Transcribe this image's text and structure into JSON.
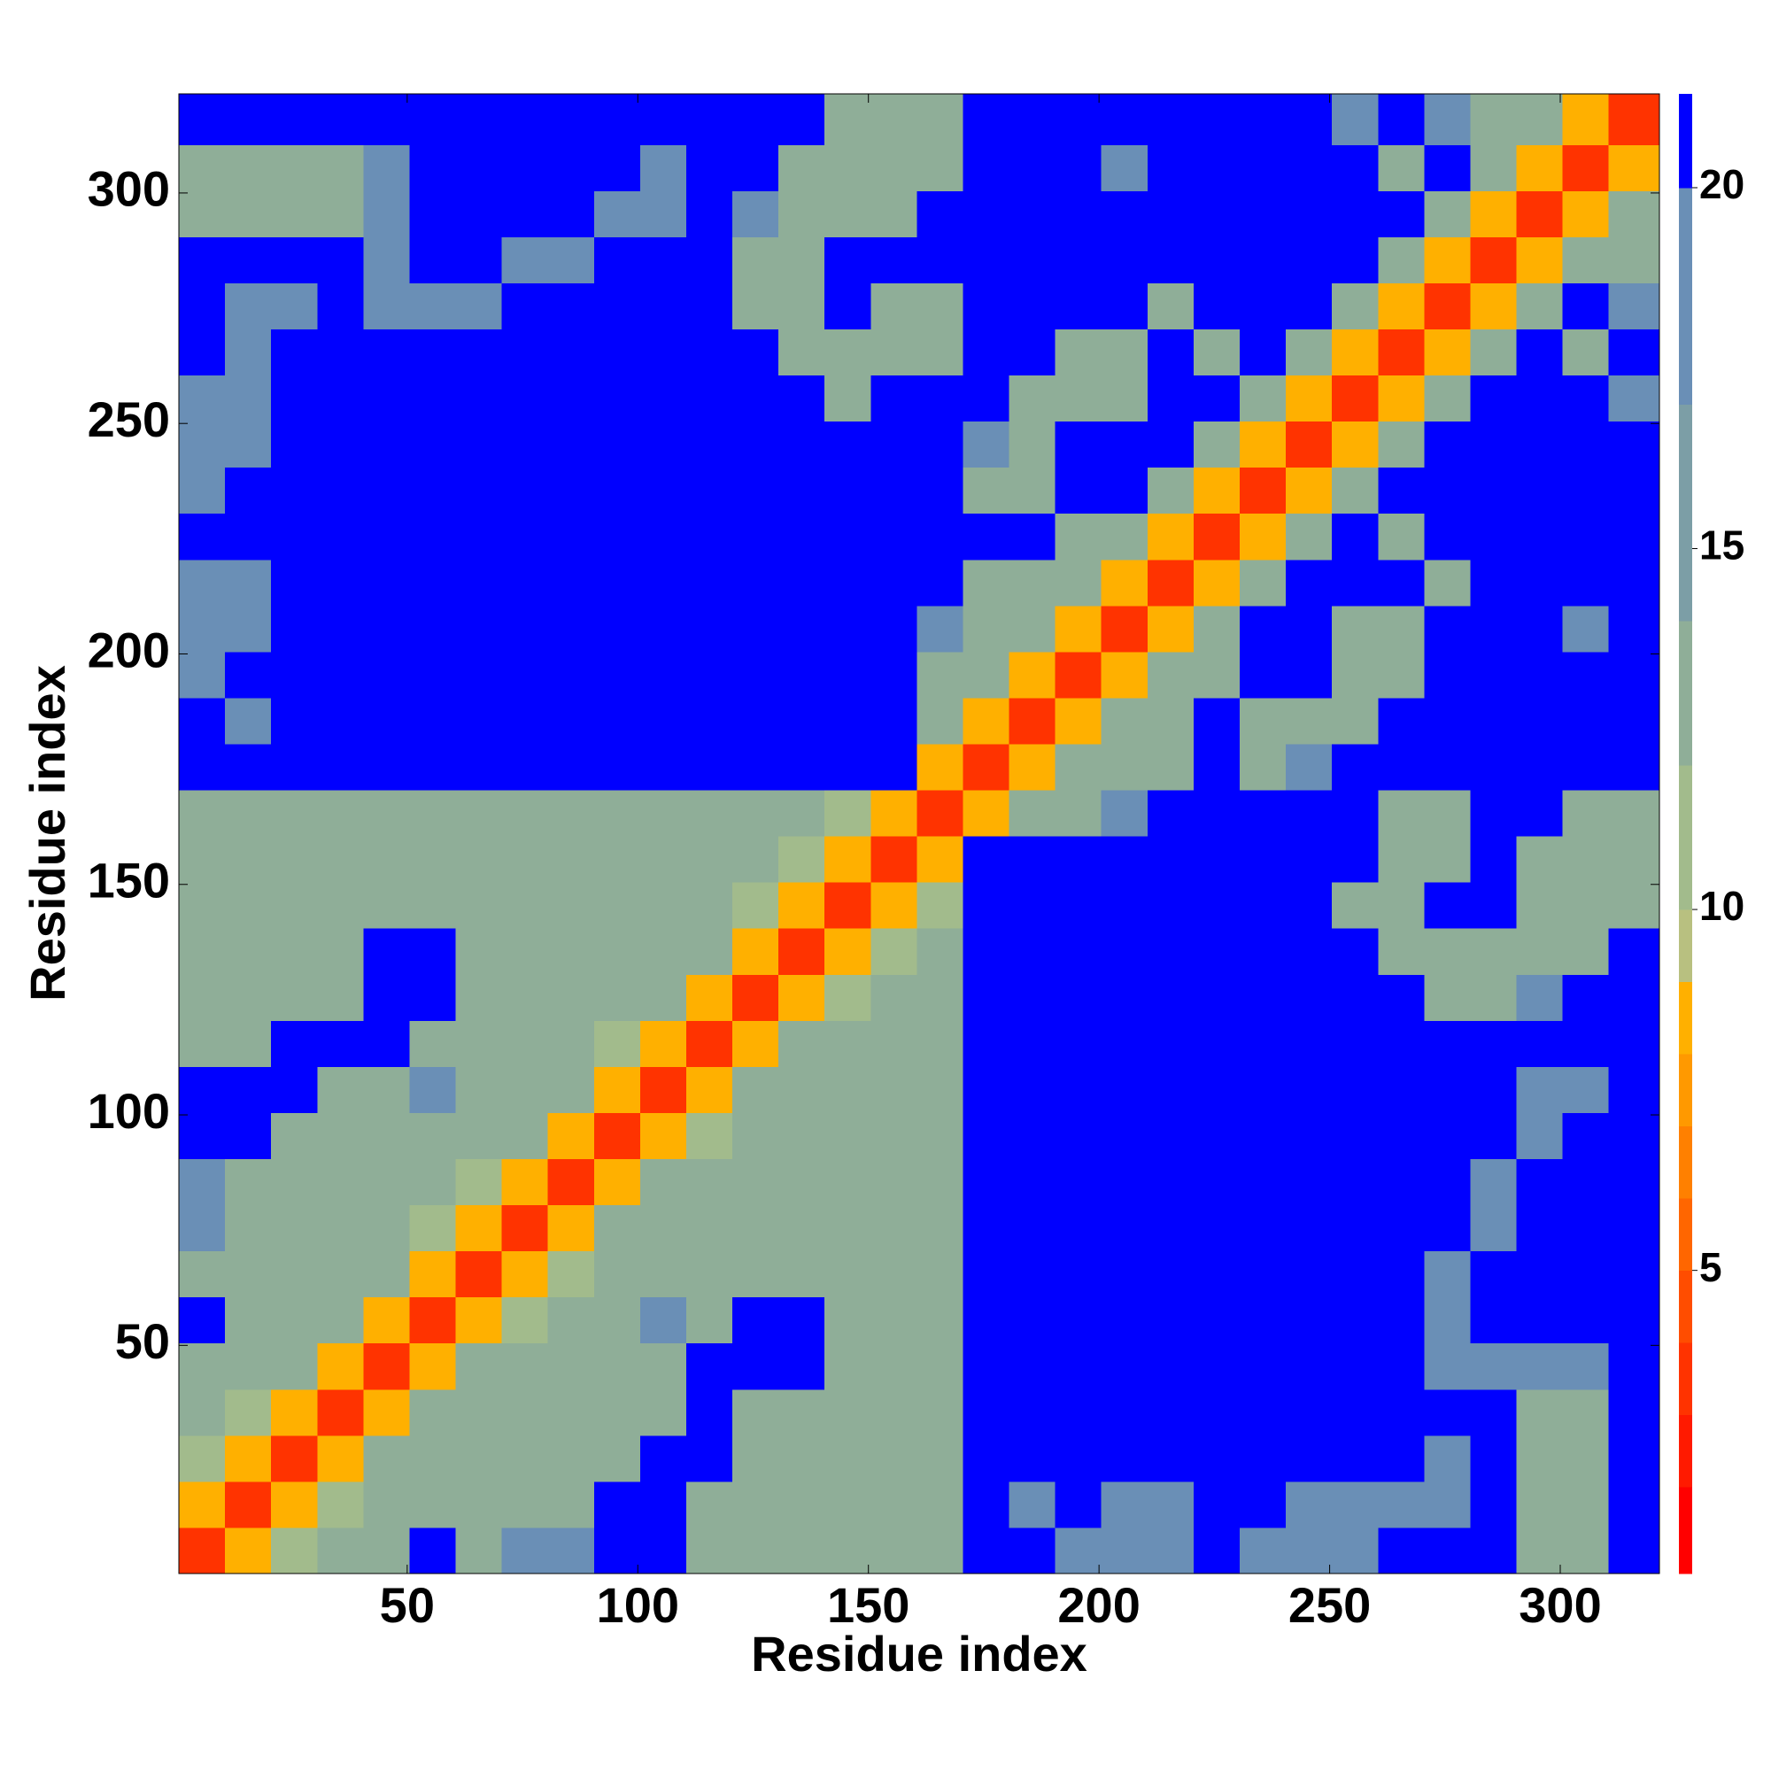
{
  "chart_data": {
    "type": "heatmap",
    "xlabel": "Residue index",
    "ylabel": "Residue index",
    "xlim": [
      0.5,
      321.5
    ],
    "ylim": [
      0.5,
      321.5
    ],
    "xticks": [
      50,
      100,
      150,
      200,
      250,
      300
    ],
    "yticks": [
      50,
      100,
      150,
      200,
      250,
      300
    ],
    "x_bins": [
      0.5,
      10.5,
      20.5,
      30.5,
      40.5,
      50.5,
      60.5,
      70.5,
      80.5,
      90.5,
      100.5,
      110.5,
      120.5,
      130.5,
      140.5,
      150.5,
      160.5,
      170.5,
      180.5,
      190.5,
      200.5,
      210.5,
      220.5,
      230.5,
      240.5,
      250.5,
      260.5,
      270.5,
      280.5,
      290.5,
      300.5,
      310.5,
      321.5
    ],
    "y_bins": [
      0.5,
      10.5,
      20.5,
      30.5,
      40.5,
      50.5,
      60.5,
      70.5,
      80.5,
      90.5,
      100.5,
      110.5,
      120.5,
      130.5,
      140.5,
      150.5,
      160.5,
      170.5,
      180.5,
      190.5,
      200.5,
      210.5,
      220.5,
      230.5,
      240.5,
      250.5,
      260.5,
      270.5,
      280.5,
      290.5,
      300.5,
      310.5,
      321.5
    ],
    "z": [
      [
        3,
        8,
        10,
        13,
        13,
        21,
        13,
        17,
        17,
        21,
        21,
        13,
        13,
        13,
        13,
        13,
        13,
        21,
        21,
        17,
        17,
        17,
        21,
        17,
        17,
        17,
        21,
        21,
        21,
        13,
        13,
        21
      ],
      [
        8,
        3,
        8,
        10,
        13,
        13,
        13,
        13,
        13,
        21,
        21,
        13,
        13,
        13,
        13,
        13,
        13,
        21,
        17,
        21,
        17,
        17,
        21,
        21,
        17,
        17,
        17,
        17,
        21,
        13,
        13,
        21
      ],
      [
        10,
        8,
        3,
        8,
        13,
        13,
        13,
        13,
        13,
        13,
        21,
        21,
        13,
        13,
        13,
        13,
        13,
        21,
        21,
        21,
        21,
        21,
        21,
        21,
        21,
        21,
        21,
        17,
        21,
        13,
        13,
        21
      ],
      [
        13,
        10,
        8,
        3,
        8,
        13,
        13,
        13,
        13,
        13,
        13,
        21,
        13,
        13,
        13,
        13,
        13,
        21,
        21,
        21,
        21,
        21,
        21,
        21,
        21,
        21,
        21,
        21,
        21,
        13,
        13,
        21
      ],
      [
        13,
        13,
        13,
        8,
        3,
        8,
        13,
        13,
        13,
        13,
        13,
        21,
        21,
        21,
        13,
        13,
        13,
        21,
        21,
        21,
        21,
        21,
        21,
        21,
        21,
        21,
        21,
        17,
        17,
        17,
        17,
        21
      ],
      [
        21,
        13,
        13,
        13,
        8,
        3,
        8,
        10,
        13,
        13,
        17,
        13,
        21,
        21,
        13,
        13,
        13,
        21,
        21,
        21,
        21,
        21,
        21,
        21,
        21,
        21,
        21,
        17,
        21,
        21,
        21,
        21
      ],
      [
        13,
        13,
        13,
        13,
        13,
        8,
        3,
        8,
        10,
        13,
        13,
        13,
        13,
        13,
        13,
        13,
        13,
        21,
        21,
        21,
        21,
        21,
        21,
        21,
        21,
        21,
        21,
        17,
        21,
        21,
        21,
        21
      ],
      [
        17,
        13,
        13,
        13,
        13,
        10,
        8,
        3,
        8,
        13,
        13,
        13,
        13,
        13,
        13,
        13,
        13,
        21,
        21,
        21,
        21,
        21,
        21,
        21,
        21,
        21,
        21,
        21,
        17,
        21,
        21,
        21
      ],
      [
        17,
        13,
        13,
        13,
        13,
        13,
        10,
        8,
        3,
        8,
        13,
        13,
        13,
        13,
        13,
        13,
        13,
        21,
        21,
        21,
        21,
        21,
        21,
        21,
        21,
        21,
        21,
        21,
        17,
        21,
        21,
        21
      ],
      [
        21,
        21,
        13,
        13,
        13,
        13,
        13,
        13,
        8,
        3,
        8,
        10,
        13,
        13,
        13,
        13,
        13,
        21,
        21,
        21,
        21,
        21,
        21,
        21,
        21,
        21,
        21,
        21,
        21,
        17,
        21,
        21
      ],
      [
        21,
        21,
        21,
        13,
        13,
        17,
        13,
        13,
        13,
        8,
        3,
        8,
        13,
        13,
        13,
        13,
        13,
        21,
        21,
        21,
        21,
        21,
        21,
        21,
        21,
        21,
        21,
        21,
        21,
        17,
        17,
        21
      ],
      [
        13,
        13,
        21,
        21,
        21,
        13,
        13,
        13,
        13,
        10,
        8,
        3,
        8,
        13,
        13,
        13,
        13,
        21,
        21,
        21,
        21,
        21,
        21,
        21,
        21,
        21,
        21,
        21,
        21,
        21,
        21,
        21
      ],
      [
        13,
        13,
        13,
        13,
        21,
        21,
        13,
        13,
        13,
        13,
        13,
        8,
        3,
        8,
        10,
        13,
        13,
        21,
        21,
        21,
        21,
        21,
        21,
        21,
        21,
        21,
        21,
        13,
        13,
        17,
        21,
        21
      ],
      [
        13,
        13,
        13,
        13,
        21,
        21,
        13,
        13,
        13,
        13,
        13,
        13,
        8,
        3,
        8,
        10,
        13,
        21,
        21,
        21,
        21,
        21,
        21,
        21,
        21,
        21,
        13,
        13,
        13,
        13,
        13,
        21
      ],
      [
        13,
        13,
        13,
        13,
        13,
        13,
        13,
        13,
        13,
        13,
        13,
        13,
        10,
        8,
        3,
        8,
        10,
        21,
        21,
        21,
        21,
        21,
        21,
        21,
        21,
        13,
        13,
        21,
        21,
        13,
        13,
        13
      ],
      [
        13,
        13,
        13,
        13,
        13,
        13,
        13,
        13,
        13,
        13,
        13,
        13,
        13,
        10,
        8,
        3,
        8,
        21,
        21,
        21,
        21,
        21,
        21,
        21,
        21,
        21,
        13,
        13,
        21,
        13,
        13,
        13
      ],
      [
        13,
        13,
        13,
        13,
        13,
        13,
        13,
        13,
        13,
        13,
        13,
        13,
        13,
        13,
        10,
        8,
        3,
        8,
        13,
        13,
        17,
        21,
        21,
        21,
        21,
        21,
        13,
        13,
        21,
        21,
        13,
        13
      ],
      [
        21,
        21,
        21,
        21,
        21,
        21,
        21,
        21,
        21,
        21,
        21,
        21,
        21,
        21,
        21,
        21,
        8,
        3,
        8,
        12,
        13,
        13,
        21,
        13,
        17,
        21,
        21,
        21,
        21,
        21,
        21,
        21
      ],
      [
        21,
        17,
        21,
        21,
        21,
        21,
        21,
        21,
        21,
        21,
        21,
        21,
        21,
        21,
        21,
        21,
        13,
        8,
        3,
        8,
        12,
        13,
        21,
        13,
        13,
        13,
        21,
        21,
        21,
        21,
        21,
        21
      ],
      [
        17,
        21,
        21,
        21,
        21,
        21,
        21,
        21,
        21,
        21,
        21,
        21,
        21,
        21,
        21,
        21,
        13,
        12,
        8,
        3,
        8,
        12,
        13,
        21,
        21,
        13,
        13,
        21,
        21,
        21,
        21,
        21
      ],
      [
        17,
        17,
        21,
        21,
        21,
        21,
        21,
        21,
        21,
        21,
        21,
        21,
        21,
        21,
        21,
        21,
        17,
        13,
        12,
        8,
        3,
        8,
        12,
        21,
        21,
        13,
        13,
        21,
        21,
        21,
        17,
        21
      ],
      [
        17,
        17,
        21,
        21,
        21,
        21,
        21,
        21,
        21,
        21,
        21,
        21,
        21,
        21,
        21,
        21,
        21,
        13,
        13,
        12,
        8,
        3,
        8,
        12,
        21,
        21,
        21,
        13,
        21,
        21,
        21,
        21
      ],
      [
        21,
        21,
        21,
        21,
        21,
        21,
        21,
        21,
        21,
        21,
        21,
        21,
        21,
        21,
        21,
        21,
        21,
        21,
        21,
        13,
        12,
        8,
        3,
        8,
        12,
        21,
        13,
        21,
        21,
        21,
        21,
        21
      ],
      [
        17,
        21,
        21,
        21,
        21,
        21,
        21,
        21,
        21,
        21,
        21,
        21,
        21,
        21,
        21,
        21,
        21,
        13,
        13,
        21,
        21,
        12,
        8,
        3,
        8,
        12,
        21,
        21,
        21,
        21,
        21,
        21
      ],
      [
        17,
        17,
        21,
        21,
        21,
        21,
        21,
        21,
        21,
        21,
        21,
        21,
        21,
        21,
        21,
        21,
        21,
        17,
        13,
        21,
        21,
        21,
        12,
        8,
        3,
        8,
        12,
        21,
        21,
        21,
        21,
        21
      ],
      [
        17,
        17,
        21,
        21,
        21,
        21,
        21,
        21,
        21,
        21,
        21,
        21,
        21,
        21,
        13,
        21,
        21,
        21,
        13,
        13,
        13,
        21,
        21,
        12,
        8,
        3,
        8,
        12,
        21,
        21,
        21,
        17
      ],
      [
        21,
        17,
        21,
        21,
        21,
        21,
        21,
        21,
        21,
        21,
        21,
        21,
        21,
        13,
        13,
        13,
        13,
        21,
        21,
        13,
        13,
        21,
        13,
        21,
        12,
        8,
        3,
        8,
        12,
        21,
        13,
        21
      ],
      [
        21,
        17,
        17,
        21,
        17,
        17,
        17,
        21,
        21,
        21,
        21,
        21,
        13,
        13,
        21,
        13,
        13,
        21,
        21,
        21,
        21,
        13,
        21,
        21,
        21,
        12,
        8,
        3,
        8,
        12,
        21,
        17
      ],
      [
        21,
        21,
        21,
        21,
        17,
        21,
        21,
        17,
        17,
        21,
        21,
        21,
        13,
        13,
        21,
        21,
        21,
        21,
        21,
        21,
        21,
        21,
        21,
        21,
        21,
        21,
        12,
        8,
        3,
        8,
        12,
        13
      ],
      [
        13,
        13,
        13,
        13,
        17,
        21,
        21,
        21,
        21,
        17,
        17,
        21,
        17,
        13,
        13,
        13,
        21,
        21,
        21,
        21,
        21,
        21,
        21,
        21,
        21,
        21,
        21,
        12,
        8,
        3,
        8,
        12
      ],
      [
        13,
        13,
        13,
        13,
        17,
        21,
        21,
        21,
        21,
        21,
        17,
        21,
        21,
        13,
        13,
        13,
        13,
        21,
        21,
        21,
        17,
        21,
        21,
        21,
        21,
        21,
        13,
        21,
        12,
        8,
        3,
        8
      ],
      [
        21,
        21,
        21,
        21,
        21,
        21,
        21,
        21,
        21,
        21,
        21,
        21,
        21,
        21,
        13,
        13,
        13,
        21,
        21,
        21,
        21,
        21,
        21,
        21,
        21,
        17,
        21,
        17,
        13,
        12,
        8,
        3
      ]
    ],
    "zlim": [
      0.8,
      21.3
    ],
    "zticks": [
      5,
      10,
      15,
      20
    ],
    "color_levels": [
      0.8,
      2,
      3,
      4,
      5,
      6,
      7,
      8,
      9,
      10,
      12,
      14,
      17,
      20,
      21.3
    ],
    "colors": [
      "#ff0000",
      "#ff1a00",
      "#ff3300",
      "#ff4d00",
      "#ff6600",
      "#ff8000",
      "#ff9900",
      "#ffb000",
      "#b8c080",
      "#a2bb8c",
      "#8fae98",
      "#7c9ea6",
      "#6a8fb6",
      "#0000ff"
    ]
  }
}
